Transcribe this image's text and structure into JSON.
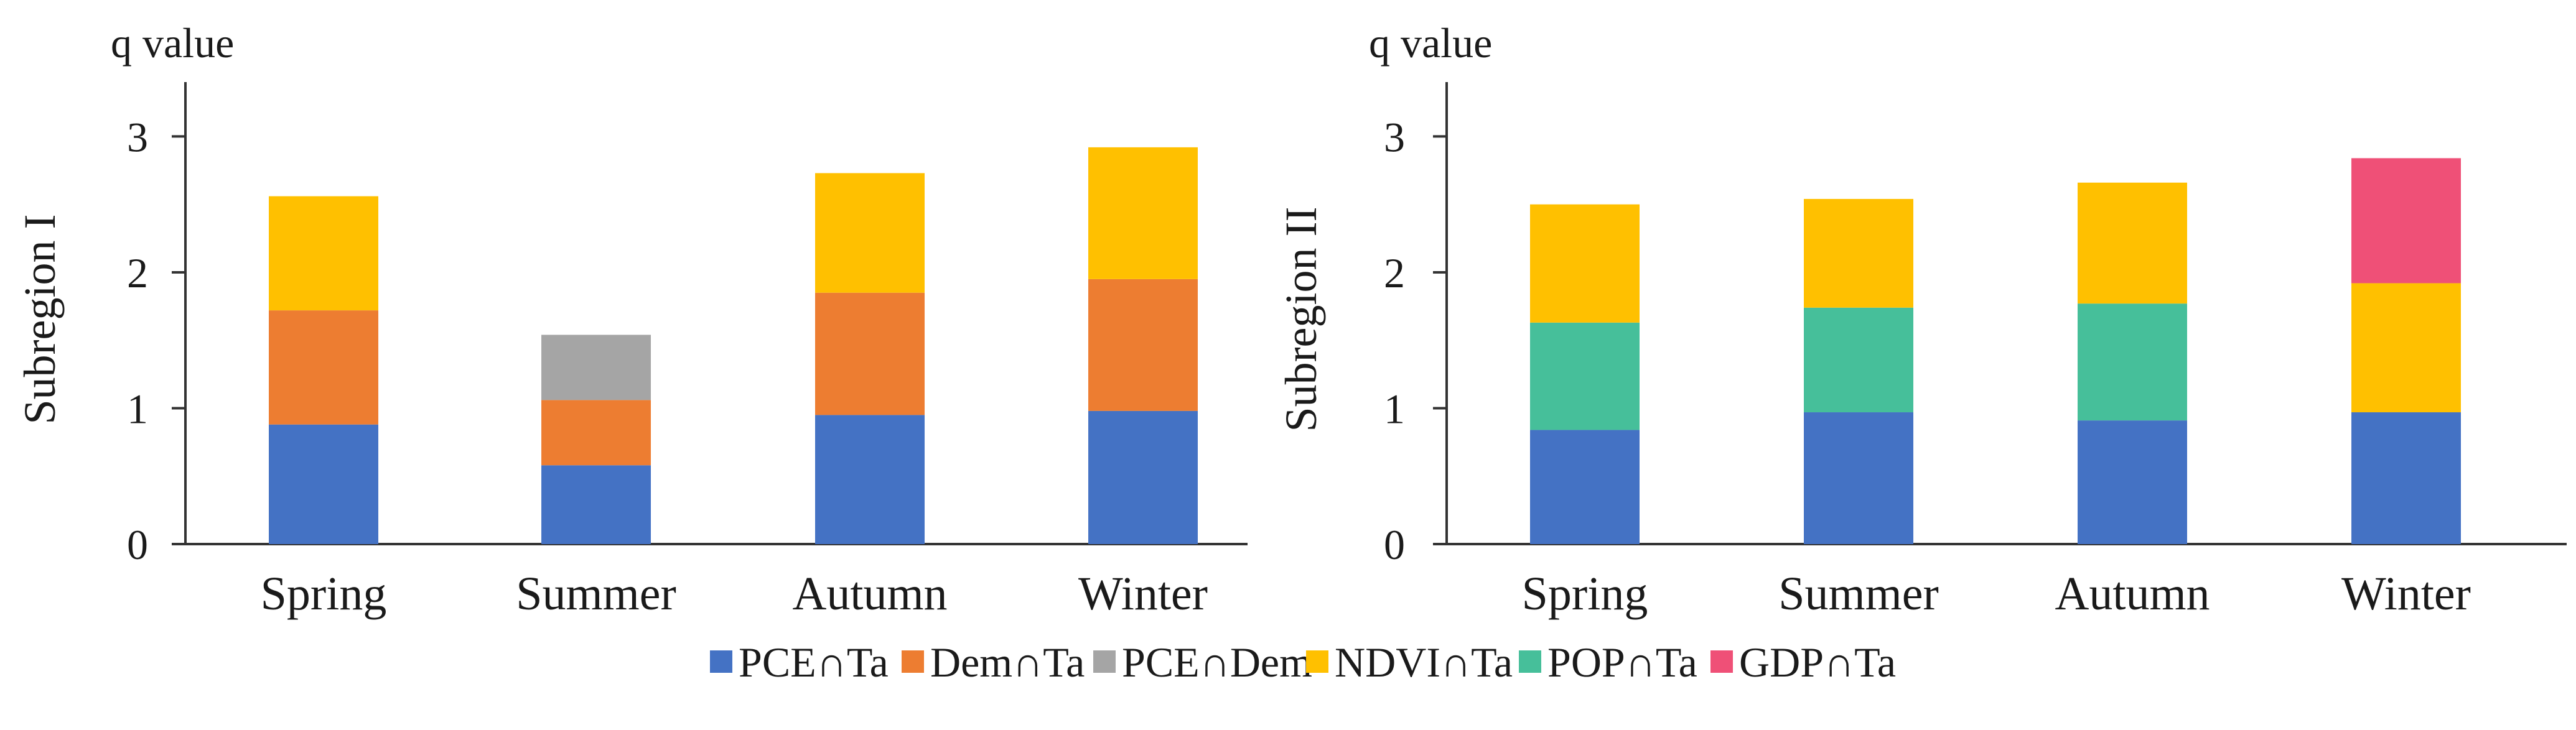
{
  "legend": [
    {
      "name": "PCE∩Ta",
      "color": "#4472C4"
    },
    {
      "name": "Dem∩Ta",
      "color": "#ED7D31"
    },
    {
      "name": "PCE∩Dem",
      "color": "#A5A5A5"
    },
    {
      "name": "NDVI∩Ta",
      "color": "#FFC000"
    },
    {
      "name": "POP∩Ta",
      "color": "#46BF9A"
    },
    {
      "name": "GDP∩Ta",
      "color": "#EF5077"
    }
  ],
  "chart_data": [
    {
      "type": "bar",
      "stacked": true,
      "title": "",
      "ylabel": "Subregion I",
      "yunit_label": "q value",
      "ylim": [
        0,
        3.4
      ],
      "yticks": [
        "0",
        "1",
        "2",
        "3"
      ],
      "categories": [
        "Spring",
        "Summer",
        "Autumn",
        "Winter"
      ],
      "series": [
        {
          "name": "PCE∩Ta",
          "color": "#4472C4",
          "values": [
            0.88,
            0.58,
            0.95,
            0.98
          ]
        },
        {
          "name": "Dem∩Ta",
          "color": "#ED7D31",
          "values": [
            0.84,
            0.48,
            0.9,
            0.97
          ]
        },
        {
          "name": "PCE∩Dem",
          "color": "#A5A5A5",
          "values": [
            0,
            0.48,
            0,
            0
          ]
        },
        {
          "name": "NDVI∩Ta",
          "color": "#FFC000",
          "values": [
            0.84,
            0,
            0.88,
            0.97
          ]
        }
      ]
    },
    {
      "type": "bar",
      "stacked": true,
      "title": "",
      "ylabel": "Subregion II",
      "yunit_label": "q value",
      "ylim": [
        0,
        3.4
      ],
      "yticks": [
        "0",
        "1",
        "2",
        "3"
      ],
      "categories": [
        "Spring",
        "Summer",
        "Autumn",
        "Winter"
      ],
      "series": [
        {
          "name": "PCE∩Ta",
          "color": "#4472C4",
          "values": [
            0.84,
            0.97,
            0.91,
            0.97
          ]
        },
        {
          "name": "POP∩Ta",
          "color": "#46BF9A",
          "values": [
            0.79,
            0.77,
            0.86,
            0
          ]
        },
        {
          "name": "NDVI∩Ta",
          "color": "#FFC000",
          "values": [
            0.87,
            0.8,
            0.89,
            0.95
          ]
        },
        {
          "name": "GDP∩Ta",
          "color": "#EF5077",
          "values": [
            0,
            0,
            0,
            0.92
          ]
        }
      ]
    }
  ]
}
